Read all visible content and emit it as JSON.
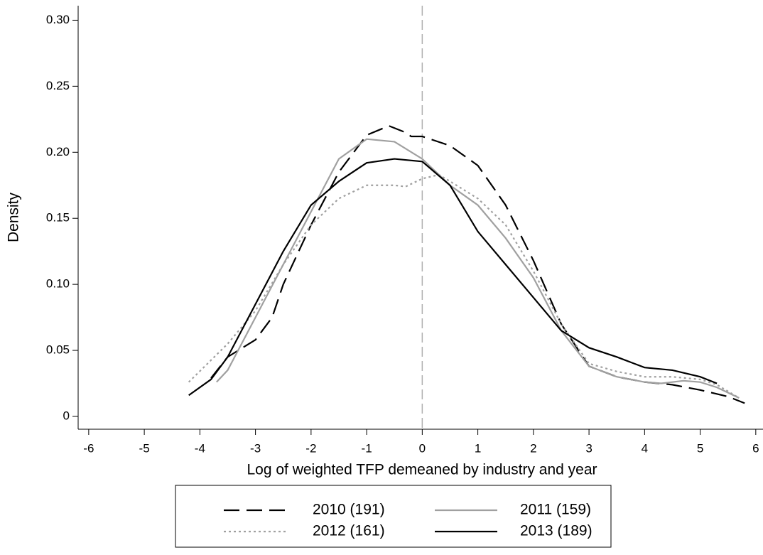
{
  "chart_data": {
    "type": "line",
    "x_label": "Log of weighted TFP demeaned by industry and year",
    "y_label": "Density",
    "xlim": [
      -6.19,
      6.13
    ],
    "ylim": [
      -0.0097,
      0.311
    ],
    "xticks": [
      -6,
      -5,
      -4,
      -3,
      -2,
      -1,
      0,
      1,
      2,
      3,
      4,
      5,
      6
    ],
    "yticks": [
      0,
      0.05,
      {
        "value": 0.1,
        "label": "0.10"
      },
      0.15,
      {
        "value": 0.2,
        "label": "0.20"
      },
      0.25,
      {
        "value": 0.3,
        "label": "0.30"
      }
    ],
    "reference_x": 0,
    "series": [
      {
        "name": "2010 (191)",
        "color": "#000000",
        "dash": "dashed",
        "x": [
          -3.8,
          -3.5,
          -3,
          -2.7,
          -2.5,
          -2,
          -1.5,
          -1,
          -0.6,
          -0.3,
          -0.2,
          0,
          0.5,
          1,
          1.5,
          2,
          2.5,
          3,
          3.5,
          4,
          4.5,
          5,
          5.5,
          5.8
        ],
        "values": [
          0.029,
          0.045,
          0.058,
          0.075,
          0.1,
          0.145,
          0.185,
          0.213,
          0.22,
          0.215,
          0.212,
          0.212,
          0.205,
          0.19,
          0.16,
          0.118,
          0.07,
          0.038,
          0.03,
          0.026,
          0.024,
          0.02,
          0.015,
          0.01
        ]
      },
      {
        "name": "2011 (159)",
        "color": "#a0a0a0",
        "dash": "solid",
        "x": [
          -3.7,
          -3.5,
          -3,
          -2.5,
          -2,
          -1.5,
          -1,
          -0.5,
          0,
          0.5,
          1,
          1.5,
          2,
          2.5,
          3,
          3.5,
          4,
          4.3,
          4.7,
          5,
          5.3,
          5.7
        ],
        "values": [
          0.026,
          0.035,
          0.075,
          0.115,
          0.155,
          0.195,
          0.21,
          0.208,
          0.195,
          0.175,
          0.16,
          0.135,
          0.105,
          0.065,
          0.038,
          0.03,
          0.026,
          0.025,
          0.027,
          0.026,
          0.022,
          0.014
        ]
      },
      {
        "name": "2012 (161)",
        "color": "#a0a0a0",
        "dash": "dotted",
        "x": [
          -4.2,
          -3.5,
          -3,
          -2.5,
          -2,
          -1.5,
          -1,
          -0.5,
          -0.3,
          0,
          0.3,
          0.5,
          1,
          1.5,
          2,
          2.5,
          3,
          3.5,
          4,
          4.5,
          5,
          5.3,
          5.7
        ],
        "values": [
          0.026,
          0.055,
          0.08,
          0.115,
          0.145,
          0.165,
          0.175,
          0.175,
          0.174,
          0.18,
          0.183,
          0.178,
          0.165,
          0.145,
          0.11,
          0.07,
          0.04,
          0.034,
          0.03,
          0.03,
          0.028,
          0.024,
          0.014
        ]
      },
      {
        "name": "2013 (189)",
        "color": "#000000",
        "dash": "solid",
        "x": [
          -4.2,
          -3.8,
          -3.5,
          -3,
          -2.5,
          -2,
          -1.5,
          -1,
          -0.5,
          0,
          0.5,
          1,
          1.5,
          2,
          2.5,
          3,
          3.5,
          4,
          4.5,
          5,
          5.3
        ],
        "values": [
          0.016,
          0.028,
          0.045,
          0.085,
          0.125,
          0.16,
          0.178,
          0.192,
          0.195,
          0.193,
          0.175,
          0.14,
          0.115,
          0.09,
          0.065,
          0.052,
          0.045,
          0.037,
          0.035,
          0.03,
          0.025
        ]
      }
    ]
  }
}
